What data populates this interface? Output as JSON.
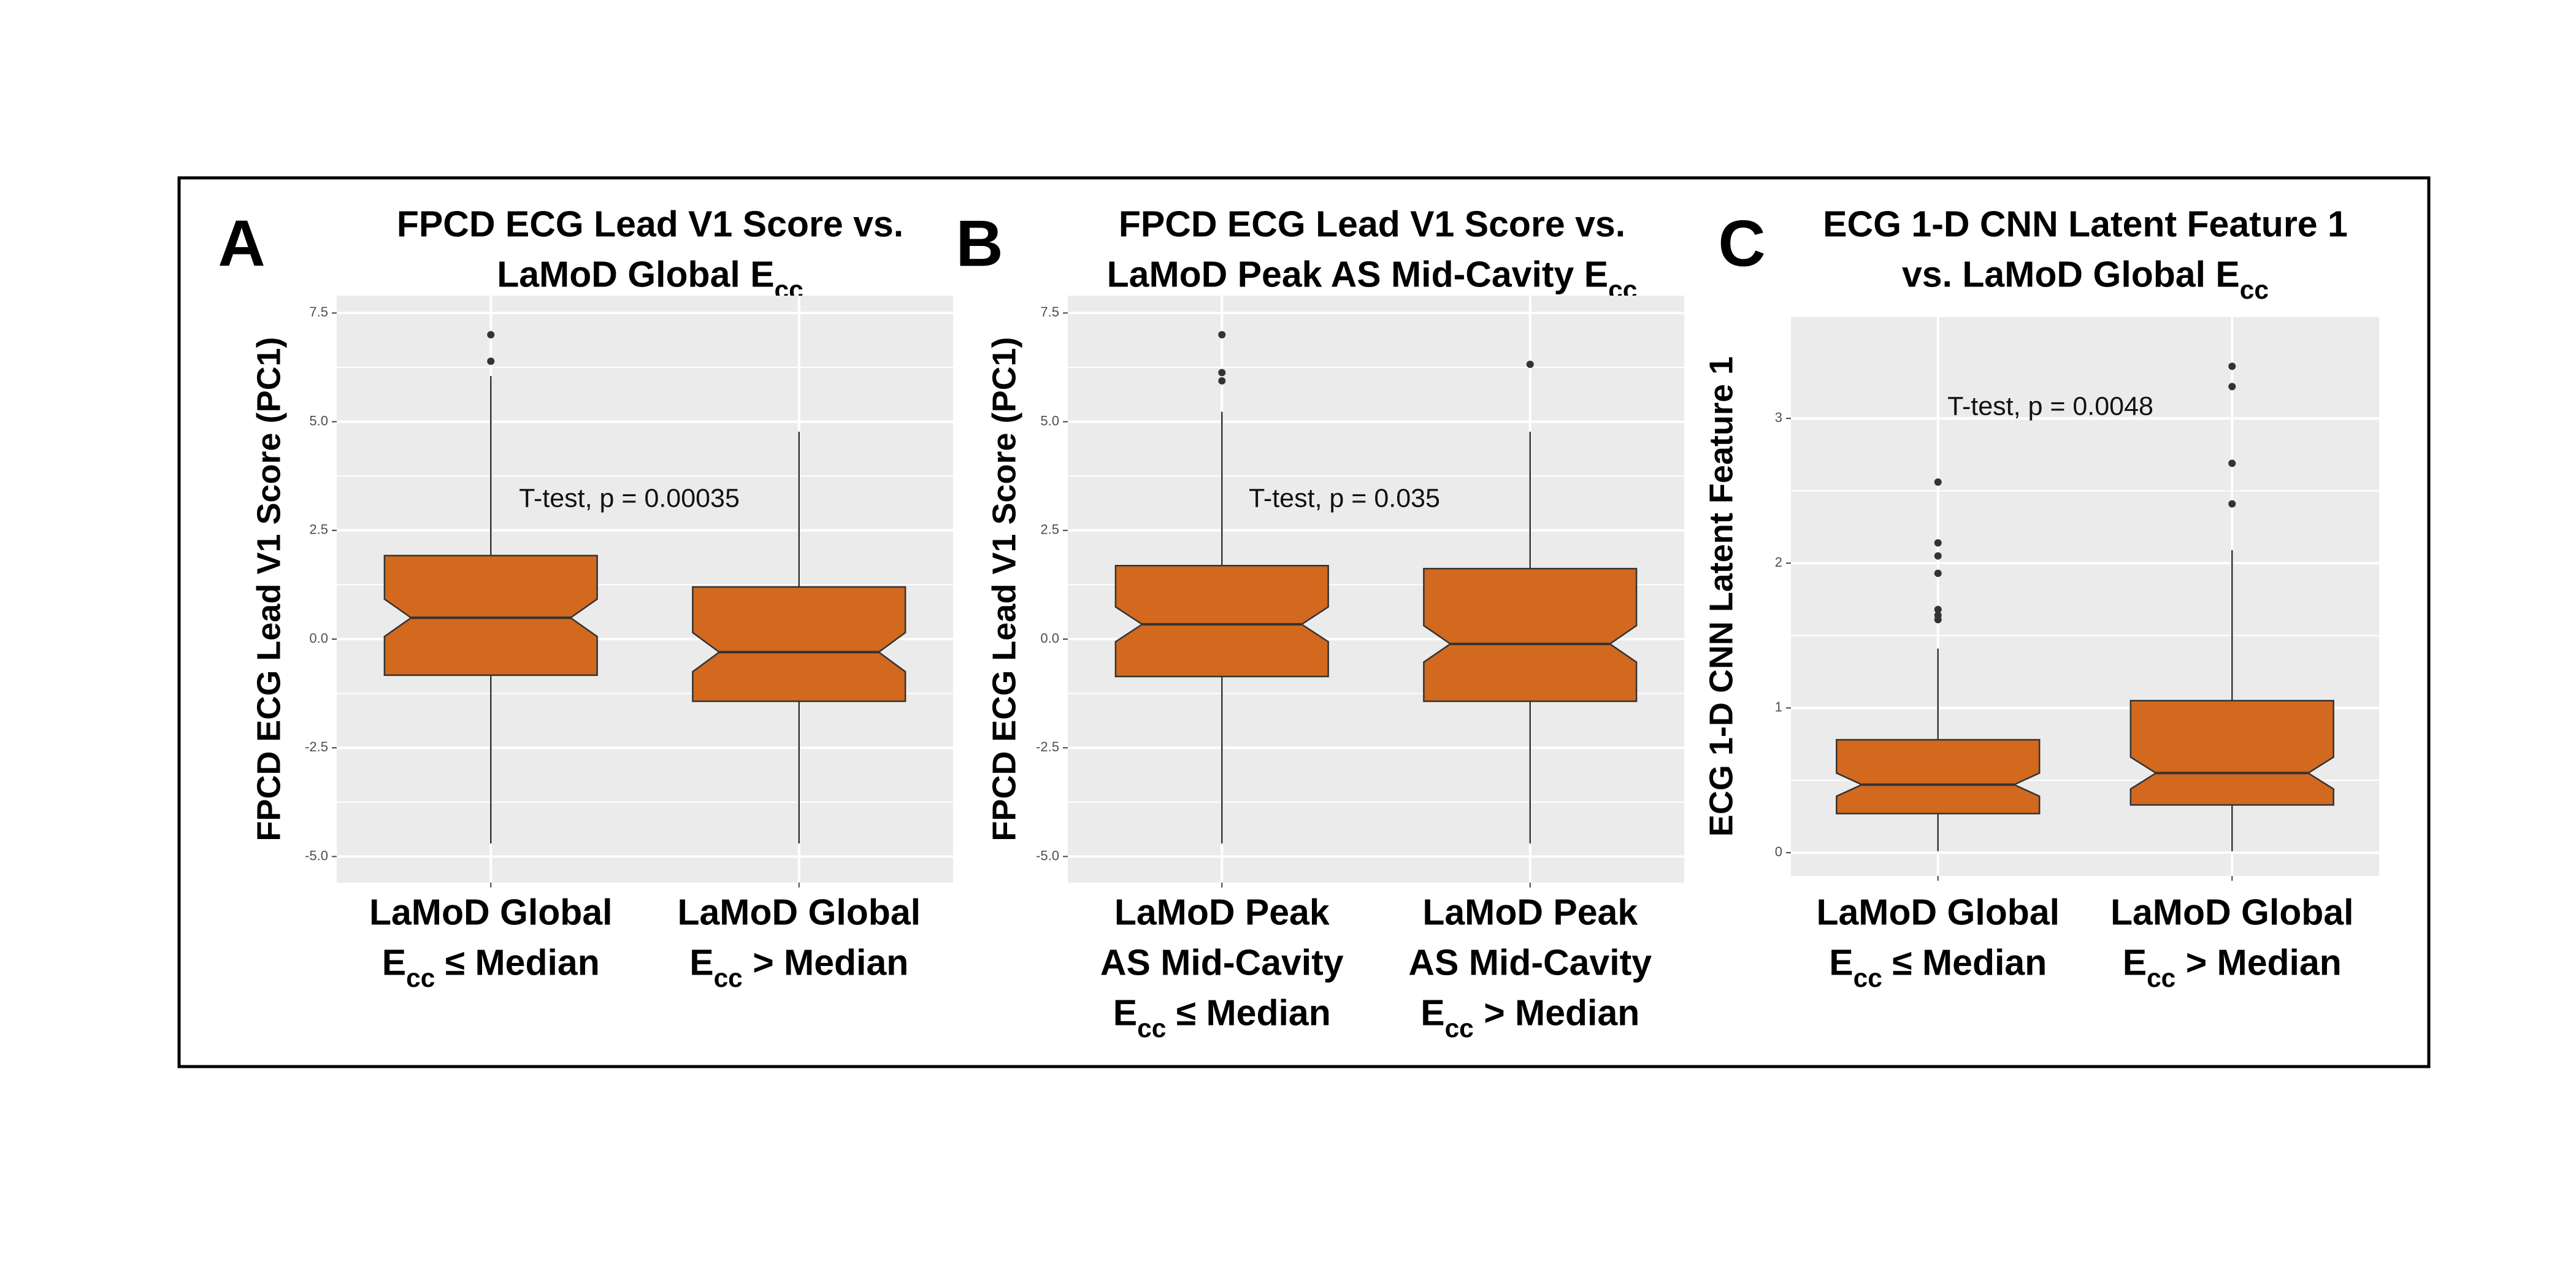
{
  "chart_data": [
    {
      "type": "box",
      "panel": "A",
      "title": [
        "FPCD ECG Lead V1 Score vs.",
        "LaMoD Global Ecc"
      ],
      "y_label": "FPCD ECG Lead V1 Score (PC1)",
      "annotation": "T-test, p = 0.00035",
      "color": "#d2691e",
      "grid": true,
      "categories": [
        [
          "LaMoD Global",
          "Ecc ≤ Median"
        ],
        [
          "LaMoD Global",
          "Ecc > Median"
        ]
      ],
      "ylim": [
        -5.6,
        7.9
      ],
      "yticks": [
        {
          "value": -5,
          "label": "-5.0"
        },
        {
          "value": -2.5,
          "label": "-2.5"
        },
        {
          "value": 0,
          "label": "0.0"
        },
        {
          "value": 2.5,
          "label": "2.5"
        },
        {
          "value": 5,
          "label": "5.0"
        },
        {
          "value": 7.5,
          "label": "7.5"
        }
      ],
      "boxes": [
        {
          "whisker_low": -4.7,
          "q1": -0.83,
          "notch_low": 0.06,
          "median": 0.49,
          "notch_high": 0.92,
          "q3": 1.92,
          "whisker_high": 6.05,
          "outliers": [
            6.39,
            7.0
          ]
        },
        {
          "whisker_low": -4.7,
          "q1": -1.43,
          "notch_low": -0.75,
          "median": -0.3,
          "notch_high": 0.15,
          "q3": 1.2,
          "whisker_high": 4.77,
          "outliers": []
        }
      ]
    },
    {
      "type": "box",
      "panel": "B",
      "title": [
        "FPCD ECG Lead V1 Score vs.",
        "LaMoD Peak AS Mid-Cavity Ecc"
      ],
      "y_label": "FPCD ECG Lead V1 Score (PC1)",
      "annotation": "T-test, p = 0.035",
      "color": "#d2691e",
      "grid": true,
      "categories": [
        [
          "LaMoD Peak",
          "AS Mid-Cavity",
          "Ecc ≤ Median"
        ],
        [
          "LaMoD Peak",
          "AS Mid-Cavity",
          "Ecc > Median"
        ]
      ],
      "ylim": [
        -5.6,
        7.9
      ],
      "yticks": [
        {
          "value": -5,
          "label": "-5.0"
        },
        {
          "value": -2.5,
          "label": "-2.5"
        },
        {
          "value": 0,
          "label": "0.0"
        },
        {
          "value": 2.5,
          "label": "2.5"
        },
        {
          "value": 5,
          "label": "5.0"
        },
        {
          "value": 7.5,
          "label": "7.5"
        }
      ],
      "boxes": [
        {
          "whisker_low": -4.7,
          "q1": -0.86,
          "notch_low": -0.06,
          "median": 0.34,
          "notch_high": 0.74,
          "q3": 1.69,
          "whisker_high": 5.23,
          "outliers": [
            5.94,
            6.13,
            7.0
          ]
        },
        {
          "whisker_low": -4.7,
          "q1": -1.43,
          "notch_low": -0.53,
          "median": -0.11,
          "notch_high": 0.31,
          "q3": 1.62,
          "whisker_high": 4.77,
          "outliers": [
            6.32
          ]
        }
      ]
    },
    {
      "type": "box",
      "panel": "C",
      "title": [
        "ECG 1-D CNN Latent Feature 1",
        "vs. LaMoD Global Ecc"
      ],
      "y_label": "ECG 1-D CNN Latent Feature 1",
      "annotation": "T-test, p = 0.0048",
      "color": "#d2691e",
      "grid": true,
      "categories": [
        [
          "LaMoD Global",
          "Ecc ≤ Median"
        ],
        [
          "LaMoD Global",
          "Ecc > Median"
        ]
      ],
      "ylim": [
        -0.16,
        3.7
      ],
      "yticks": [
        0,
        1,
        2,
        3
      ],
      "boxes": [
        {
          "whisker_low": 0.01,
          "q1": 0.27,
          "notch_low": 0.39,
          "median": 0.47,
          "notch_high": 0.55,
          "q3": 0.78,
          "whisker_high": 1.41,
          "outliers": [
            1.61,
            1.64,
            1.68,
            1.93,
            2.05,
            2.14,
            2.56
          ]
        },
        {
          "whisker_low": 0.01,
          "q1": 0.33,
          "notch_low": 0.44,
          "median": 0.55,
          "notch_high": 0.66,
          "q3": 1.05,
          "whisker_high": 2.09,
          "outliers": [
            2.41,
            2.69,
            3.22,
            3.36
          ]
        }
      ]
    }
  ]
}
